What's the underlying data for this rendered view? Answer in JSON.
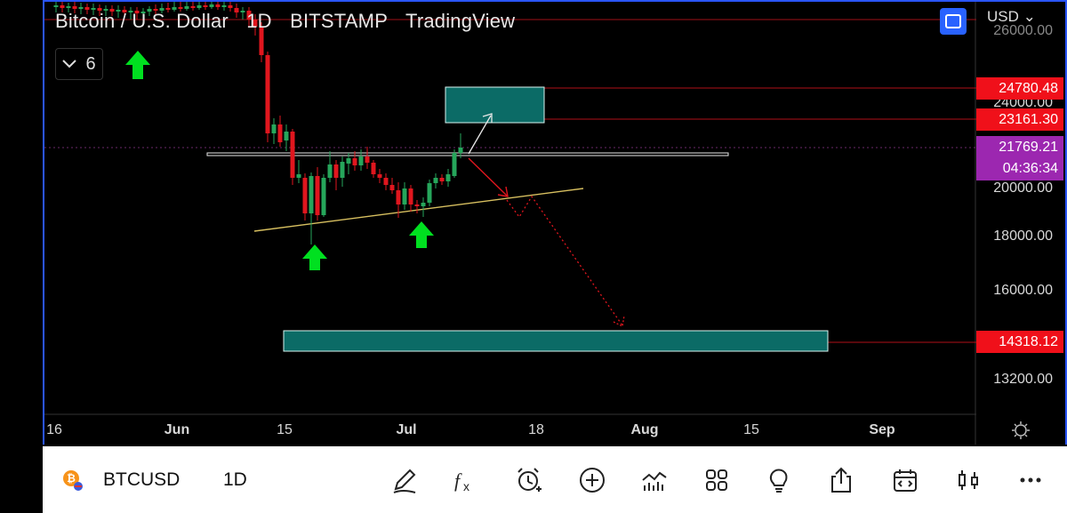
{
  "header": {
    "symbol_name": "Bitcoin / U.S. Dollar",
    "interval": "1D",
    "exchange": "BITSTAMP",
    "provider": "TradingView"
  },
  "indicator_toggle": {
    "count": "6"
  },
  "currency": "USD",
  "price_axis": {
    "partial_top": "26000.00",
    "labels": [
      "24000.00",
      "20000.00",
      "18000.00",
      "16000.00",
      "13200.00"
    ]
  },
  "price_markers": {
    "upper_zone": "24780.48",
    "mid_zone": "23161.30",
    "current_price": "21769.21",
    "countdown": "04:36:34",
    "lower_zone": "14318.12"
  },
  "time_axis": [
    "16",
    "Jun",
    "15",
    "Jul",
    "18",
    "Aug",
    "15",
    "Sep"
  ],
  "bottom_toolbar": {
    "symbol": "BTCUSD",
    "interval": "1D"
  },
  "colors": {
    "up": "#26a65b",
    "down": "#e0161e",
    "zone": "#0b6b66",
    "frame": "#2a55ff",
    "purple": "#9c27b0",
    "arrow_green": "#00e020"
  }
}
